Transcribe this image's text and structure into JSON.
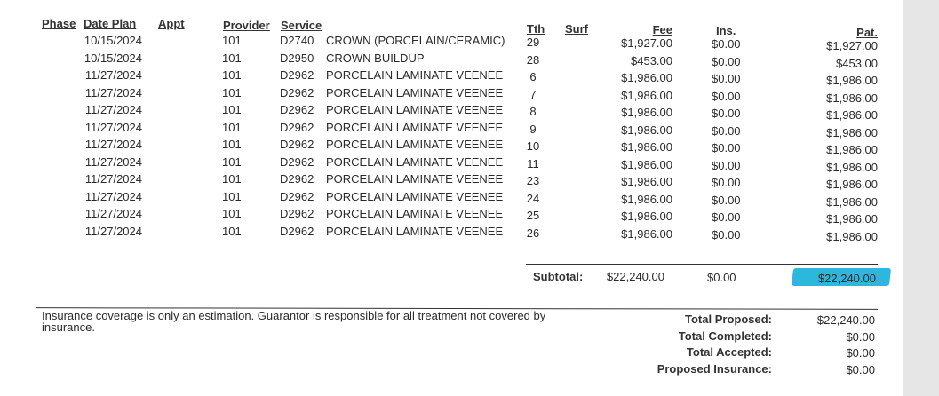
{
  "headers": {
    "phase": "Phase",
    "date_plan": "Date Plan",
    "appt": "Appt",
    "provider": "Provider",
    "service": "Service",
    "tth": "Tth",
    "surf": "Surf",
    "fee": "Fee",
    "ins": "Ins.",
    "pat": "Pat."
  },
  "rows": [
    {
      "date": "10/15/2024",
      "provider": "101",
      "code": "D2740",
      "desc": "CROWN (PORCELAIN/CERAMIC)",
      "tth": "29",
      "fee": "$1,927.00",
      "ins": "$0.00",
      "pat": "$1,927.00"
    },
    {
      "date": "10/15/2024",
      "provider": "101",
      "code": "D2950",
      "desc": "CROWN BUILDUP",
      "tth": "28",
      "fee": "$453.00",
      "ins": "$0.00",
      "pat": "$453.00"
    },
    {
      "date": "11/27/2024",
      "provider": "101",
      "code": "D2962",
      "desc": "PORCELAIN LAMINATE VEENEE",
      "tth": "6",
      "fee": "$1,986.00",
      "ins": "$0.00",
      "pat": "$1,986.00"
    },
    {
      "date": "11/27/2024",
      "provider": "101",
      "code": "D2962",
      "desc": "PORCELAIN LAMINATE VEENEE",
      "tth": "7",
      "fee": "$1,986.00",
      "ins": "$0.00",
      "pat": "$1,986.00"
    },
    {
      "date": "11/27/2024",
      "provider": "101",
      "code": "D2962",
      "desc": "PORCELAIN LAMINATE VEENEE",
      "tth": "8",
      "fee": "$1,986.00",
      "ins": "$0.00",
      "pat": "$1,986.00"
    },
    {
      "date": "11/27/2024",
      "provider": "101",
      "code": "D2962",
      "desc": "PORCELAIN LAMINATE VEENEE",
      "tth": "9",
      "fee": "$1,986.00",
      "ins": "$0.00",
      "pat": "$1,986.00"
    },
    {
      "date": "11/27/2024",
      "provider": "101",
      "code": "D2962",
      "desc": "PORCELAIN LAMINATE VEENEE",
      "tth": "10",
      "fee": "$1,986.00",
      "ins": "$0.00",
      "pat": "$1,986.00"
    },
    {
      "date": "11/27/2024",
      "provider": "101",
      "code": "D2962",
      "desc": "PORCELAIN LAMINATE VEENEE",
      "tth": "11",
      "fee": "$1,986.00",
      "ins": "$0.00",
      "pat": "$1,986.00"
    },
    {
      "date": "11/27/2024",
      "provider": "101",
      "code": "D2962",
      "desc": "PORCELAIN LAMINATE VEENEE",
      "tth": "23",
      "fee": "$1,986.00",
      "ins": "$0.00",
      "pat": "$1,986.00"
    },
    {
      "date": "11/27/2024",
      "provider": "101",
      "code": "D2962",
      "desc": "PORCELAIN LAMINATE VEENEE",
      "tth": "24",
      "fee": "$1,986.00",
      "ins": "$0.00",
      "pat": "$1,986.00"
    },
    {
      "date": "11/27/2024",
      "provider": "101",
      "code": "D2962",
      "desc": "PORCELAIN LAMINATE VEENEE",
      "tth": "25",
      "fee": "$1,986.00",
      "ins": "$0.00",
      "pat": "$1,986.00"
    },
    {
      "date": "11/27/2024",
      "provider": "101",
      "code": "D2962",
      "desc": "PORCELAIN LAMINATE VEENEE",
      "tth": "26",
      "fee": "$1,986.00",
      "ins": "$0.00",
      "pat": "$1,986.00"
    }
  ],
  "subtotal": {
    "label": "Subtotal:",
    "fee": "$22,240.00",
    "ins": "$0.00",
    "pat": "$22,240.00"
  },
  "highlight_color": "#2bb8dc",
  "disclaimer": {
    "line1": "Insurance coverage is only an estimation. Guarantor is responsible for all treatment not covered by",
    "line2": "insurance."
  },
  "totals": [
    {
      "label": "Total Proposed:",
      "value": "$22,240.00"
    },
    {
      "label": "Total Completed:",
      "value": "$0.00"
    },
    {
      "label": "Total Accepted:",
      "value": "$0.00"
    },
    {
      "label": "Proposed Insurance:",
      "value": "$0.00"
    }
  ]
}
